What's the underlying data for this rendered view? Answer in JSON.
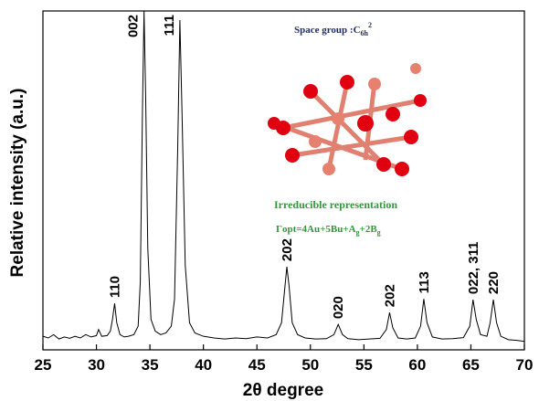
{
  "chart_data": {
    "type": "line",
    "xlabel": "2θ degree",
    "ylabel": "Relative intensity (a.u.)",
    "xlim": [
      25,
      70
    ],
    "xticks": [
      25,
      30,
      35,
      40,
      45,
      50,
      55,
      60,
      65,
      70
    ],
    "ylim": [
      0,
      100
    ],
    "color": "#000000",
    "x": [
      25,
      25.5,
      26,
      26.5,
      27,
      27.5,
      28,
      28.5,
      29,
      29.5,
      30,
      30.2,
      30.5,
      31,
      31.3,
      31.5,
      31.7,
      31.9,
      32.2,
      32.6,
      33,
      33.5,
      33.9,
      34.1,
      34.3,
      34.45,
      34.6,
      34.8,
      35.1,
      35.5,
      36,
      36.5,
      37,
      37.3,
      37.6,
      37.8,
      38,
      38.3,
      38.7,
      39.2,
      40,
      41,
      42,
      43,
      44,
      45,
      46,
      46.8,
      47.3,
      47.6,
      47.8,
      48,
      48.3,
      48.8,
      49.5,
      50.5,
      51.5,
      52.2,
      52.6,
      53,
      53.5,
      54.5,
      55.5,
      56.5,
      57.1,
      57.4,
      57.7,
      58.2,
      59,
      59.8,
      60.3,
      60.6,
      60.9,
      61.4,
      62.3,
      63.3,
      64.3,
      64.9,
      65.2,
      65.5,
      65.9,
      66.5,
      66.8,
      67.1,
      67.4,
      67.8,
      68.5,
      69.3,
      70
    ],
    "values": [
      4,
      3.5,
      4.5,
      3.2,
      3.8,
      3.4,
      4,
      3.5,
      4.5,
      3.8,
      4.2,
      6,
      4,
      4.2,
      5.5,
      9,
      13.7,
      8,
      4.5,
      3.8,
      4,
      4.5,
      7,
      20,
      70,
      100,
      75,
      30,
      9,
      5.5,
      4.5,
      5,
      7,
      15,
      60,
      97.3,
      70,
      25,
      8,
      5,
      4,
      3.5,
      3.2,
      3.5,
      3.3,
      3.8,
      3.5,
      4.5,
      8,
      18,
      24.5,
      19,
      8,
      4.5,
      3.5,
      3.2,
      3.3,
      4.5,
      7.5,
      4.5,
      3.3,
      3,
      3.2,
      3.4,
      6,
      11,
      6.5,
      3.5,
      3.2,
      3.5,
      7,
      15,
      8,
      3.8,
      3.2,
      3.3,
      3.6,
      7,
      14.8,
      9,
      4.5,
      4,
      8,
      14.8,
      8,
      4,
      3,
      2.8,
      2.5
    ],
    "peak_labels": [
      {
        "label": "110",
        "x": 31.7
      },
      {
        "label": "002",
        "x": 34.45
      },
      {
        "label": "111",
        "x": 37.8
      },
      {
        "label": "202",
        "x": 47.8
      },
      {
        "label": "020",
        "x": 52.6
      },
      {
        "label": "202",
        "x": 57.4
      },
      {
        "label": "113",
        "x": 60.6
      },
      {
        "label": "022, 311",
        "x": 65.2
      },
      {
        "label": "220",
        "x": 67.1
      }
    ],
    "space_group": {
      "text": "Space group :C",
      "sub": "6h",
      "sup": "2"
    },
    "irreducible_title": "Irreducible representation",
    "irreducible_formula": [
      "Γopt=4Au+5Bu+A",
      "g",
      "+2B",
      "g"
    ]
  }
}
